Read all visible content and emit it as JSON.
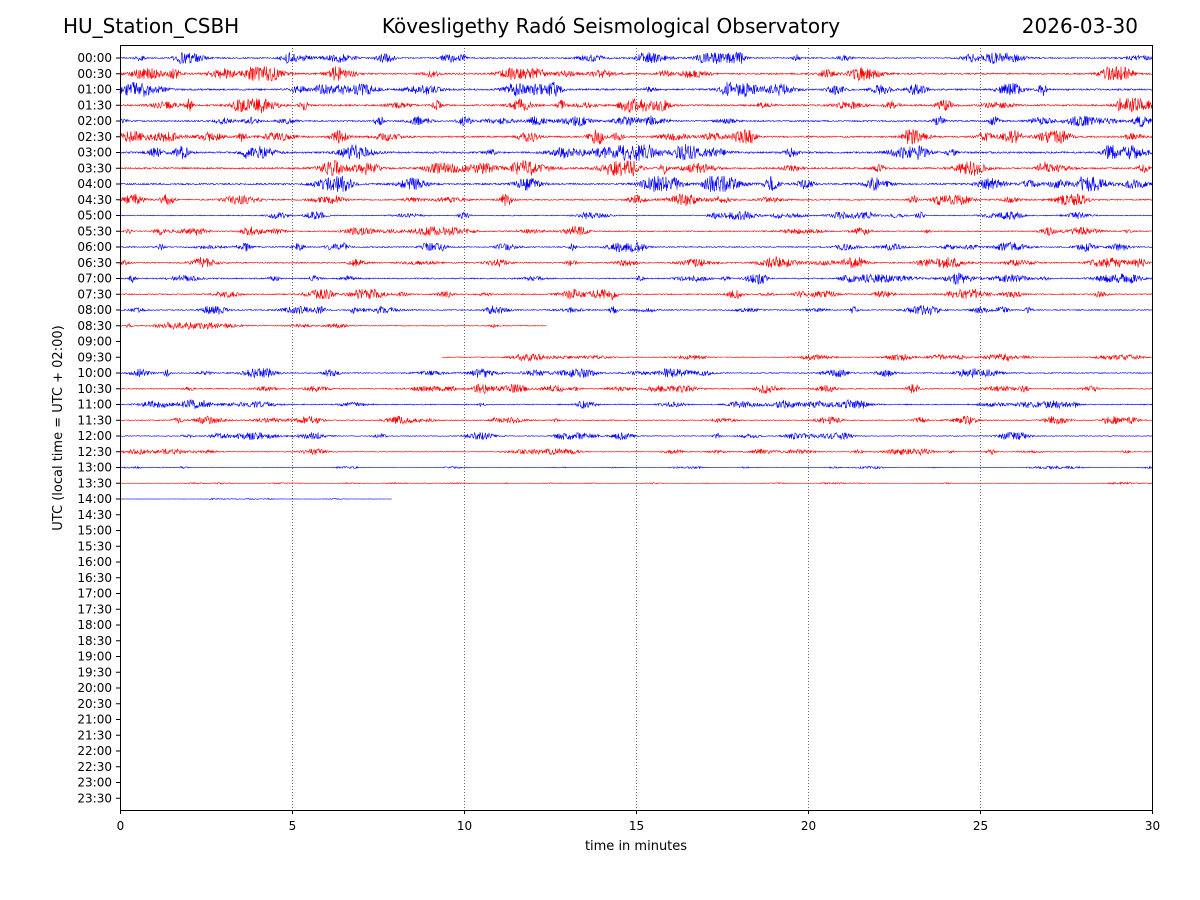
{
  "header": {
    "station": "HU_Station_CSBH",
    "observatory": "Kövesligethy Radó Seismological Observatory",
    "date": "2026-03-30"
  },
  "chart_data": {
    "type": "line",
    "title": "Kövesligethy Radó Seismological Observatory",
    "xlabel": "time in minutes",
    "ylabel": "UTC (local time = UTC + 02:00)",
    "xlim": [
      0,
      30
    ],
    "x_ticks": [
      "0",
      "5",
      "10",
      "15",
      "20",
      "25",
      "30"
    ],
    "y_ticks": [
      "00:00",
      "00:30",
      "01:00",
      "01:30",
      "02:00",
      "02:30",
      "03:00",
      "03:30",
      "04:00",
      "04:30",
      "05:00",
      "05:30",
      "06:00",
      "06:30",
      "07:00",
      "07:30",
      "08:00",
      "08:30",
      "09:00",
      "09:30",
      "10:00",
      "10:30",
      "11:00",
      "11:30",
      "12:00",
      "12:30",
      "13:00",
      "13:30",
      "14:00",
      "14:30",
      "15:00",
      "15:30",
      "16:00",
      "16:30",
      "17:00",
      "17:30",
      "18:00",
      "18:30",
      "19:00",
      "19:30",
      "20:00",
      "20:30",
      "21:00",
      "21:30",
      "22:00",
      "22:30",
      "23:00",
      "23:30"
    ],
    "grid": "vertical dotted at 5-minute ticks",
    "colors": {
      "even_rows": "#0000ff",
      "odd_rows": "#ff0000"
    },
    "traces": [
      {
        "label": "00:00",
        "start": 0,
        "end": 30,
        "amp": 0.55
      },
      {
        "label": "00:30",
        "start": 0,
        "end": 30,
        "amp": 0.7
      },
      {
        "label": "01:00",
        "start": 0,
        "end": 30,
        "amp": 0.75
      },
      {
        "label": "01:30",
        "start": 0,
        "end": 30,
        "amp": 0.75
      },
      {
        "label": "02:00",
        "start": 0,
        "end": 30,
        "amp": 0.6
      },
      {
        "label": "02:30",
        "start": 0,
        "end": 30,
        "amp": 0.7
      },
      {
        "label": "03:00",
        "start": 0,
        "end": 30,
        "amp": 0.8
      },
      {
        "label": "03:30",
        "start": 0,
        "end": 30,
        "amp": 0.75
      },
      {
        "label": "04:00",
        "start": 0,
        "end": 30,
        "amp": 0.75
      },
      {
        "label": "04:30",
        "start": 0,
        "end": 30,
        "amp": 0.6
      },
      {
        "label": "05:00",
        "start": 0,
        "end": 30,
        "amp": 0.4
      },
      {
        "label": "05:30",
        "start": 0,
        "end": 30,
        "amp": 0.45
      },
      {
        "label": "06:00",
        "start": 0,
        "end": 30,
        "amp": 0.5
      },
      {
        "label": "06:30",
        "start": 0,
        "end": 30,
        "amp": 0.55
      },
      {
        "label": "07:00",
        "start": 0,
        "end": 30,
        "amp": 0.55
      },
      {
        "label": "07:30",
        "start": 0,
        "end": 30,
        "amp": 0.5
      },
      {
        "label": "08:00",
        "start": 0,
        "end": 30,
        "amp": 0.45
      },
      {
        "label": "08:30",
        "start": 0,
        "end": 12.4,
        "amp": 0.35
      },
      {
        "label": "09:00",
        "start": 0,
        "end": 0,
        "amp": 0
      },
      {
        "label": "09:30",
        "start": 9.35,
        "end": 30,
        "amp": 0.35
      },
      {
        "label": "10:00",
        "start": 0,
        "end": 30,
        "amp": 0.45
      },
      {
        "label": "10:30",
        "start": 0,
        "end": 30,
        "amp": 0.45
      },
      {
        "label": "11:00",
        "start": 0,
        "end": 30,
        "amp": 0.45
      },
      {
        "label": "11:30",
        "start": 0,
        "end": 30,
        "amp": 0.4
      },
      {
        "label": "12:00",
        "start": 0,
        "end": 30,
        "amp": 0.35
      },
      {
        "label": "12:30",
        "start": 0,
        "end": 30,
        "amp": 0.3
      },
      {
        "label": "13:00",
        "start": 0,
        "end": 30,
        "amp": 0.12
      },
      {
        "label": "13:30",
        "start": 0,
        "end": 30,
        "amp": 0.08
      },
      {
        "label": "14:00",
        "start": 0,
        "end": 7.9,
        "amp": 0.06
      }
    ]
  }
}
